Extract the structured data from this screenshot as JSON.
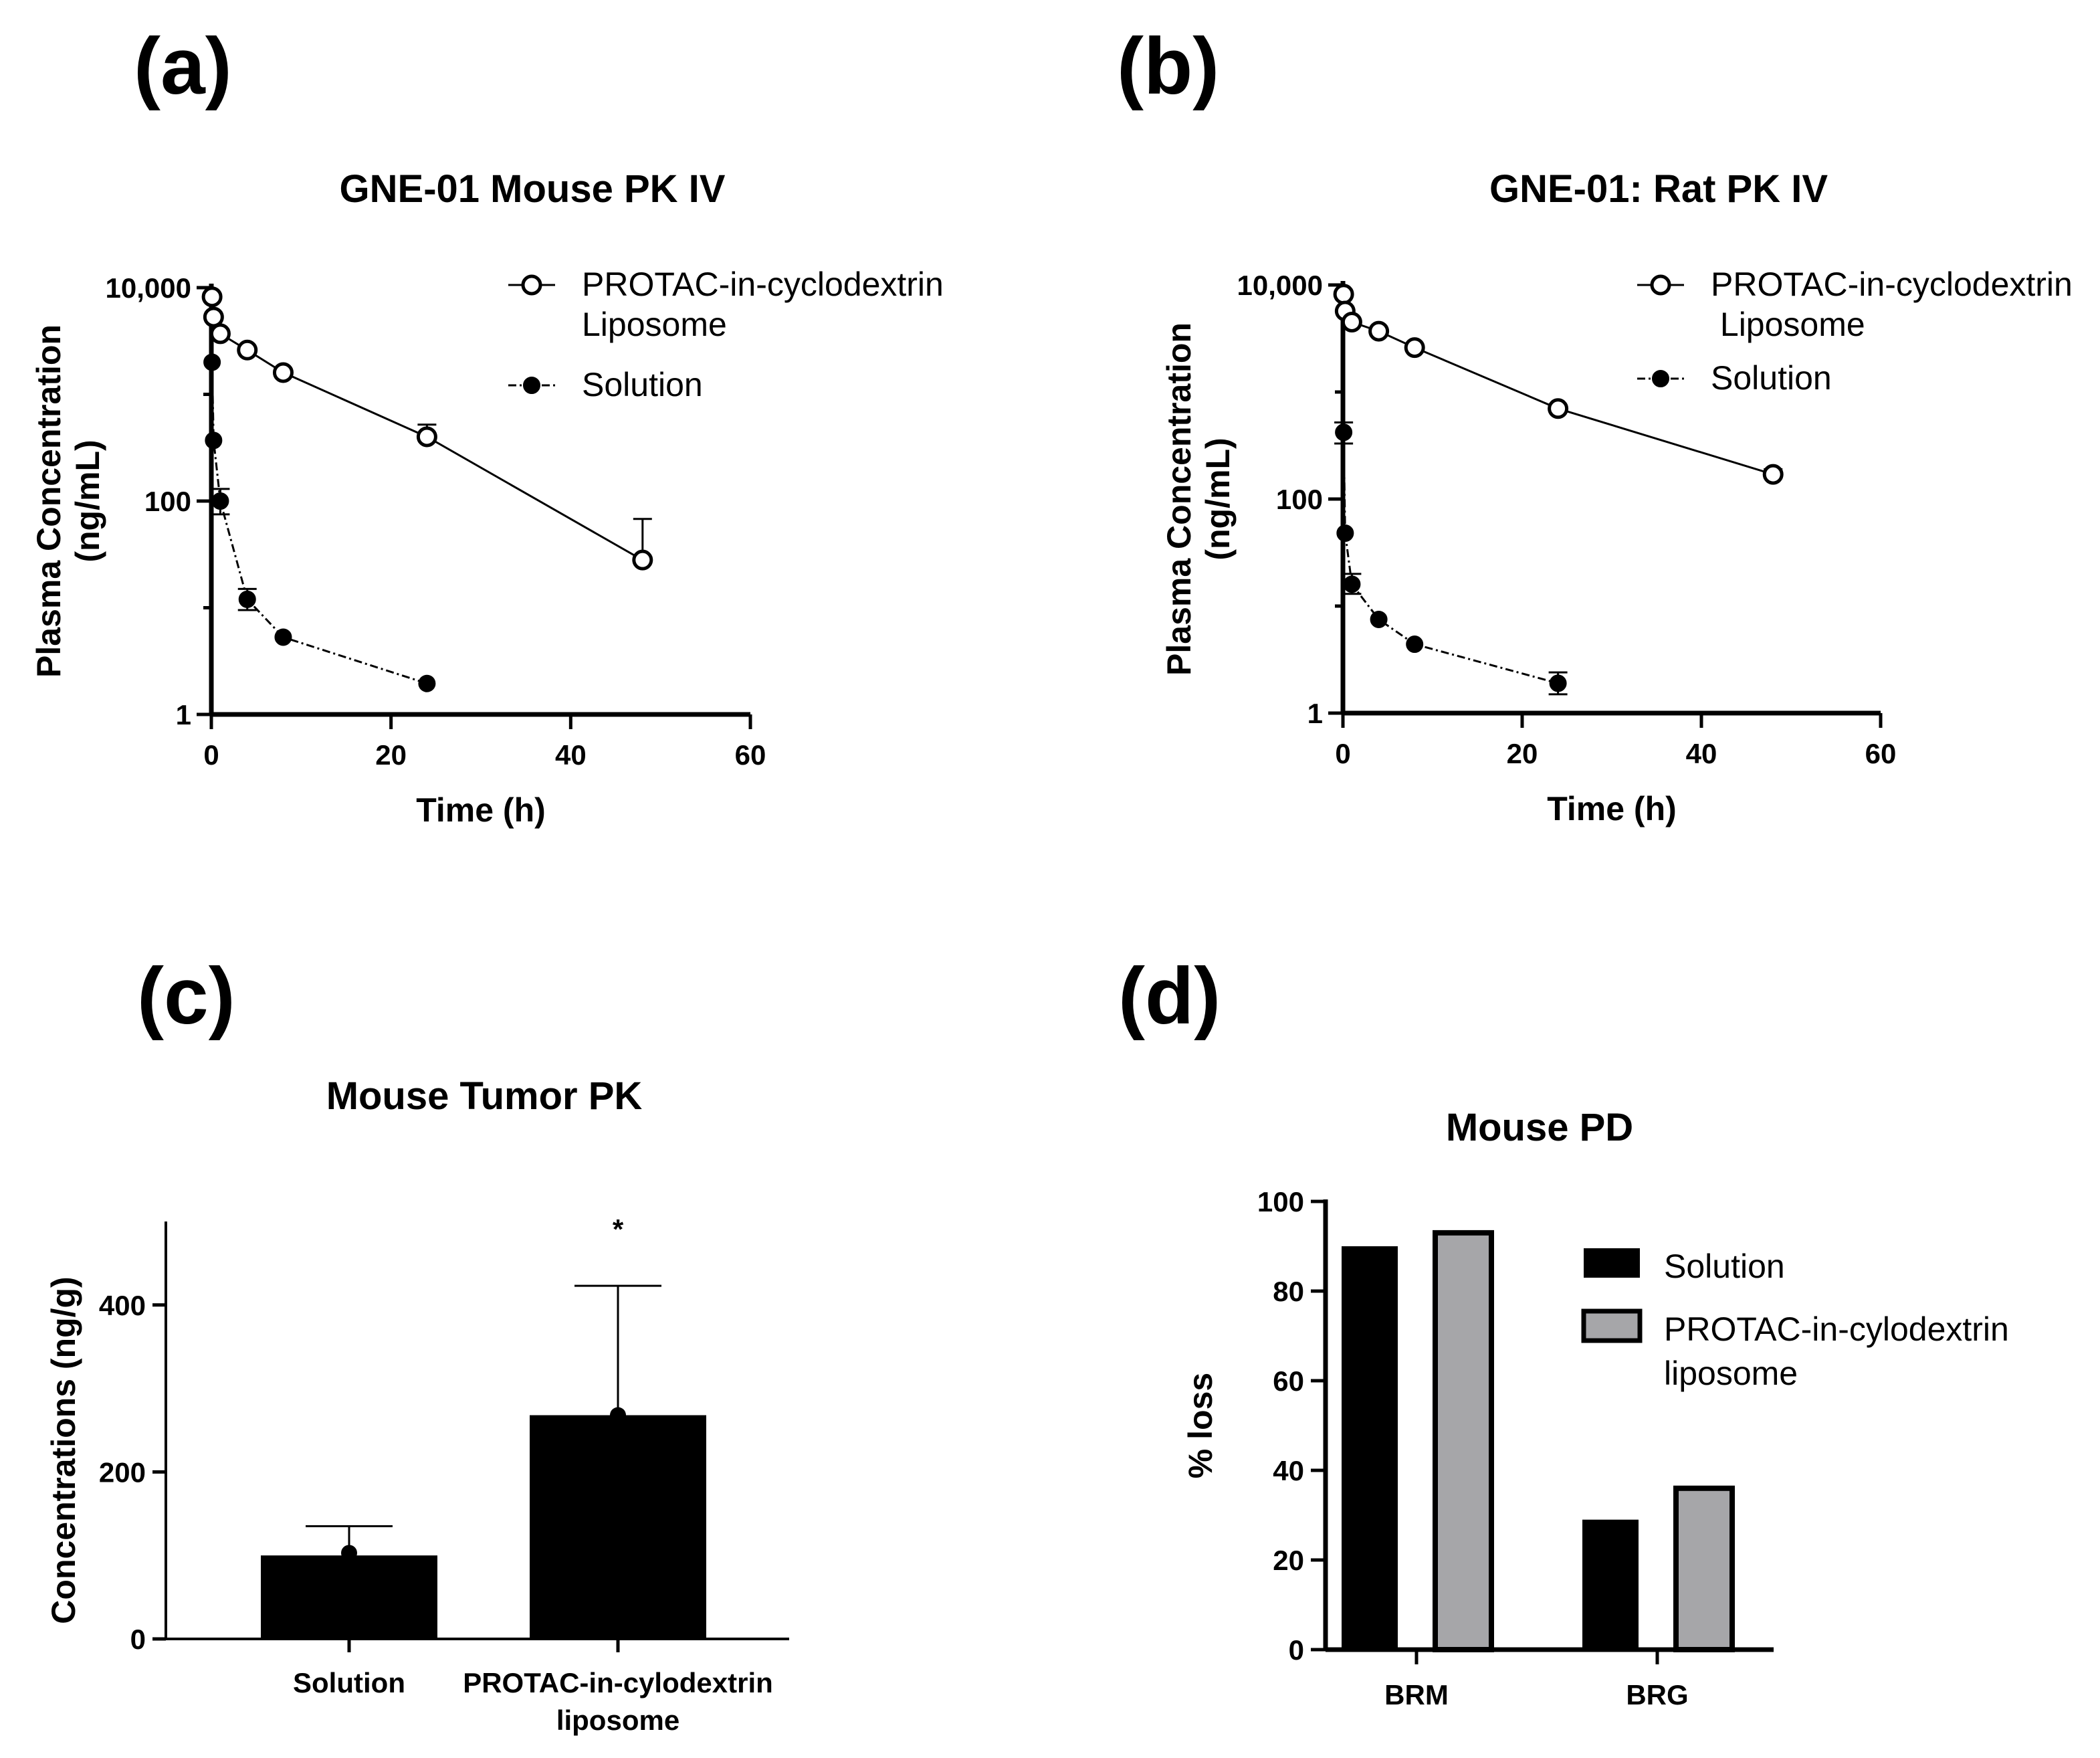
{
  "panels": {
    "a": {
      "letter": "(a)"
    },
    "b": {
      "letter": "(b)"
    },
    "c": {
      "letter": "(c)"
    },
    "d": {
      "letter": "(d)"
    }
  },
  "chart_data": [
    {
      "id": "a",
      "type": "line",
      "title": "GNE-01 Mouse PK IV",
      "xlabel": "Time (h)",
      "ylabel_lines": [
        "Plasma Concentration",
        "(ng/mL)"
      ],
      "yscale": "log",
      "xlim": [
        0,
        60
      ],
      "ylim": [
        1,
        10000
      ],
      "xticks": [
        0,
        20,
        40,
        60
      ],
      "yticks": [
        1,
        100,
        10000
      ],
      "ytick_labels": [
        "1",
        "100",
        "10,000"
      ],
      "legend_position": "top-right",
      "series": [
        {
          "name_lines": [
            "PROTAC-in-cyclodextrin",
            "Liposome"
          ],
          "marker": "open-circle",
          "line": "solid",
          "x": [
            0.083,
            0.25,
            1,
            4,
            8,
            24,
            48
          ],
          "y": [
            8200,
            5300,
            3700,
            2600,
            1600,
            400,
            28
          ],
          "err_upper": [
            null,
            null,
            null,
            null,
            null,
            520,
            68
          ]
        },
        {
          "name_lines": [
            "Solution"
          ],
          "marker": "filled-circle",
          "line": "dash-dot",
          "x": [
            0.083,
            0.25,
            1,
            4,
            8,
            24
          ],
          "y": [
            2000,
            370,
            100,
            12,
            5.3,
            1.95
          ],
          "err_upper": [
            null,
            null,
            130,
            15,
            null,
            null
          ],
          "err_lower": [
            null,
            null,
            75,
            9.5,
            null,
            null
          ]
        }
      ]
    },
    {
      "id": "b",
      "type": "line",
      "title": "GNE-01: Rat PK IV",
      "xlabel": "Time (h)",
      "ylabel_lines": [
        "Plasma Concentration",
        "(ng/mL)"
      ],
      "yscale": "log",
      "xlim": [
        0,
        60
      ],
      "ylim": [
        1,
        10000
      ],
      "xticks": [
        0,
        20,
        40,
        60
      ],
      "yticks": [
        1,
        100,
        10000
      ],
      "ytick_labels": [
        "1",
        "100",
        "10,000"
      ],
      "legend_position": "top-right",
      "series": [
        {
          "name_lines": [
            "PROTAC-in-cyclodextrin",
            " Liposome"
          ],
          "marker": "open-circle",
          "line": "solid",
          "x": [
            0.083,
            0.25,
            1,
            4,
            8,
            24,
            48
          ],
          "y": [
            8200,
            5700,
            4500,
            3700,
            2600,
            700,
            170
          ],
          "err_upper": [
            null,
            null,
            null,
            null,
            null,
            null,
            190
          ]
        },
        {
          "name_lines": [
            "Solution"
          ],
          "marker": "filled-circle",
          "line": "dash-dot",
          "x": [
            0.083,
            0.25,
            1,
            4,
            8,
            24
          ],
          "y": [
            420,
            48,
            16,
            7.5,
            4.4,
            1.9
          ],
          "err_upper": [
            520,
            null,
            20,
            null,
            null,
            2.4
          ],
          "err_lower": [
            330,
            null,
            13,
            null,
            null,
            1.5
          ]
        }
      ]
    },
    {
      "id": "c",
      "type": "bar",
      "title": "Mouse Tumor PK",
      "xlabel": "",
      "ylabel": "Concentrations (ng/g)",
      "ylim": [
        0,
        500
      ],
      "yticks": [
        0,
        200,
        400
      ],
      "categories": [
        {
          "lines": [
            "Solution"
          ]
        },
        {
          "lines": [
            "PROTAC-in-cylodextrin",
            "liposome"
          ]
        }
      ],
      "values": [
        100,
        268
      ],
      "points": [
        103,
        268
      ],
      "err_upper": [
        135,
        423
      ],
      "annotations": [
        {
          "category_index": 1,
          "text": "*"
        }
      ]
    },
    {
      "id": "d",
      "type": "bar",
      "title": "Mouse PD",
      "xlabel": "",
      "ylabel": "% loss",
      "ylim": [
        0,
        100
      ],
      "yticks": [
        0,
        20,
        40,
        60,
        80,
        100
      ],
      "categories": [
        "BRM",
        "BRG"
      ],
      "legend_position": "top-right",
      "series": [
        {
          "name_lines": [
            "Solution"
          ],
          "color": "#000000",
          "values": [
            90,
            29
          ]
        },
        {
          "name_lines": [
            "PROTAC-in-cylodextrin",
            "liposome"
          ],
          "color": "#a6a6a9",
          "values": [
            93,
            36
          ]
        }
      ]
    }
  ]
}
